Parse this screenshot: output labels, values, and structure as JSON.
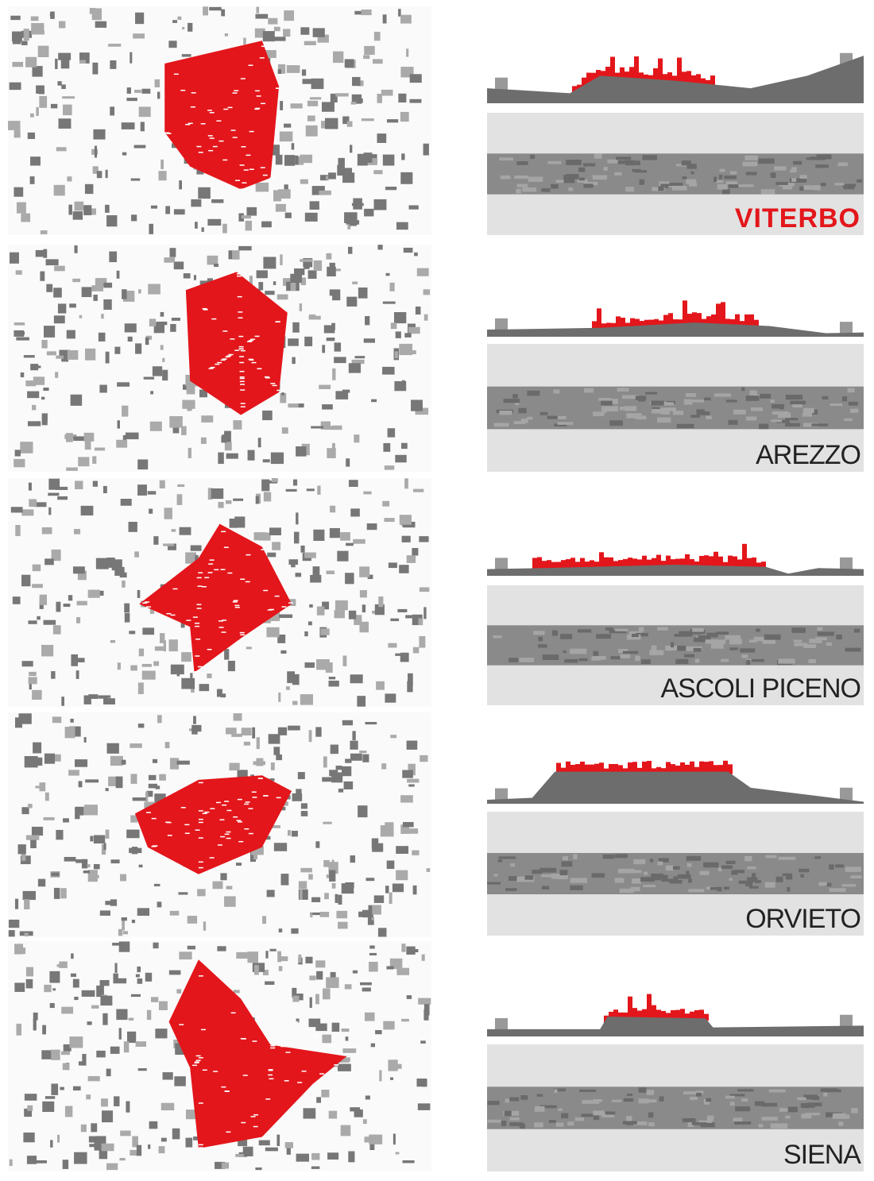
{
  "cities": [
    {
      "name": "VITERBO"
    },
    {
      "name": "AREZZO"
    },
    {
      "name": "ASCOLI PICENO"
    },
    {
      "name": "ORVIETO"
    },
    {
      "name": "SIENA"
    }
  ]
}
